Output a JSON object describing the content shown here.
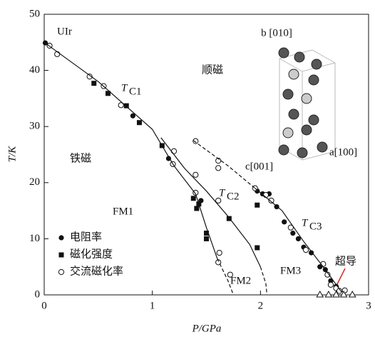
{
  "chart_data": {
    "type": "scatter",
    "x_label": "P/GPa",
    "y_label": "T/K",
    "xlim": [
      0,
      3
    ],
    "xticks": [
      0,
      1,
      2,
      3
    ],
    "ylim": [
      0,
      50
    ],
    "yticks": [
      0,
      10,
      20,
      30,
      40,
      50
    ],
    "labels": {
      "sample": "UIr",
      "para": "顺磁",
      "ferro": "铁磁",
      "fm1": "FM1",
      "fm2": "FM2",
      "fm3": "FM3",
      "sc": "超导",
      "tc1": {
        "main": "T",
        "sub": "C1"
      },
      "tc2": {
        "main": "T",
        "sub": "C2"
      },
      "tc3": {
        "main": "T",
        "sub": "C3"
      },
      "axis_b": "b [010]",
      "axis_a": "a[100]",
      "axis_c": "c[001]"
    },
    "series": [
      {
        "name": "电阻率",
        "marker": "circle",
        "color": "#111",
        "x": [
          0.01,
          0.82,
          1.15,
          1.45,
          1.97,
          2.02,
          2.08,
          2.15,
          2.22,
          2.3,
          2.35,
          2.4,
          2.47,
          2.55,
          2.6,
          2.65,
          2.7
        ],
        "values": [
          44.9,
          31.9,
          24.3,
          16.8,
          18.5,
          18.0,
          18.0,
          15.7,
          13.0,
          11.0,
          10.0,
          8.5,
          7.5,
          5.0,
          4.5,
          2.5,
          1.5
        ]
      },
      {
        "name": "磁化强度",
        "marker": "square",
        "color": "#111",
        "x": [
          0.46,
          0.59,
          0.76,
          0.88,
          1.09,
          1.38,
          1.43,
          1.41,
          1.5,
          1.5,
          1.71,
          1.97,
          1.97
        ],
        "values": [
          37.7,
          35.9,
          33.7,
          30.7,
          26.6,
          17.2,
          16.2,
          15.4,
          11.0,
          10.0,
          13.6,
          16.0,
          8.4
        ]
      },
      {
        "name": "交流磁化率",
        "marker": "open-circle",
        "color": "#111",
        "x": [
          0.05,
          0.12,
          0.42,
          0.55,
          0.71,
          1.2,
          1.19,
          1.4,
          1.4,
          1.4,
          1.61,
          1.61,
          1.61,
          1.62,
          1.61,
          1.72,
          1.95,
          2.05,
          2.1,
          2.28,
          2.42,
          2.58,
          2.62,
          2.65,
          2.7,
          2.73,
          2.78
        ],
        "values": [
          44.4,
          42.9,
          38.9,
          37.2,
          33.8,
          25.6,
          23.3,
          27.4,
          21.4,
          18.2,
          23.9,
          22.6,
          16.8,
          7.5,
          5.8,
          3.6,
          19.0,
          17.8,
          16.8,
          12.0,
          8.0,
          5.5,
          3.6,
          1.8,
          1.2,
          0.7,
          0.8
        ]
      },
      {
        "marker": "triangle",
        "color": "#111",
        "x": [
          2.55,
          2.63,
          2.7,
          2.77,
          2.85
        ],
        "values": [
          0,
          0,
          0,
          0,
          0
        ]
      },
      {
        "marker": "none",
        "color": "#111",
        "dash": false,
        "x": [
          0,
          0.5,
          1,
          1.2,
          1.4,
          1.5,
          1.6
        ],
        "values": [
          45,
          38,
          29.5,
          23,
          18,
          12,
          6.5
        ]
      },
      {
        "marker": "none",
        "color": "#111",
        "dash": true,
        "x": [
          1.6,
          1.7,
          1.75
        ],
        "values": [
          6.5,
          2.5,
          0
        ]
      },
      {
        "marker": "none",
        "color": "#111",
        "dash": false,
        "x": [
          1.08,
          1.3,
          1.5,
          1.7,
          1.9,
          2.0
        ],
        "values": [
          28,
          22.5,
          18.5,
          14,
          9,
          5
        ]
      },
      {
        "marker": "none",
        "color": "#111",
        "dash": true,
        "x": [
          2.0,
          2.05,
          2.06
        ],
        "values": [
          5,
          2,
          0
        ]
      },
      {
        "marker": "none",
        "color": "#111",
        "dash": true,
        "x": [
          1.38,
          1.7,
          1.95
        ],
        "values": [
          27.5,
          23,
          19
        ]
      },
      {
        "marker": "none",
        "color": "#111",
        "dash": false,
        "x": [
          1.95,
          2.2,
          2.4,
          2.6,
          2.75
        ],
        "values": [
          19,
          15,
          9.5,
          4.5,
          0.5
        ]
      }
    ]
  }
}
